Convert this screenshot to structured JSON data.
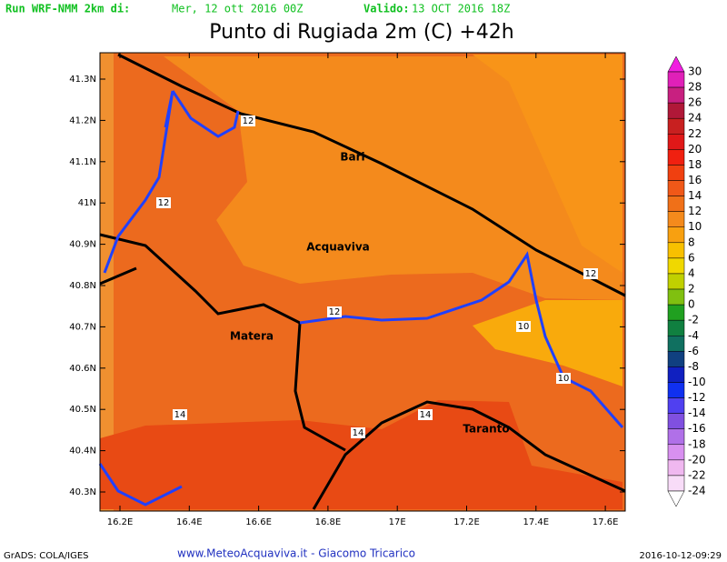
{
  "header": {
    "run_label": "Run WRF-NMM 2km di:",
    "run_date": "Mer, 12 ott 2016 00Z",
    "valid_label": "Valido:",
    "valid_date": "13 OCT 2016 18Z",
    "title": "Punto di Rugiada 2m (C) +42h"
  },
  "map": {
    "lat_labels": [
      "41.3N",
      "41.2N",
      "41.1N",
      "41N",
      "40.9N",
      "40.8N",
      "40.7N",
      "40.6N",
      "40.5N",
      "40.4N",
      "40.3N"
    ],
    "lon_labels": [
      "16.2E",
      "16.4E",
      "16.6E",
      "16.8E",
      "17E",
      "17.2E",
      "17.4E",
      "17.6E"
    ],
    "cities": [
      "Bari",
      "Acquaviva",
      "Matera",
      "Taranto"
    ],
    "contour_labels": [
      "12",
      "12",
      "12",
      "12",
      "10",
      "10",
      "14",
      "14",
      "14"
    ]
  },
  "colorbar": {
    "labels": [
      "30",
      "28",
      "26",
      "24",
      "22",
      "20",
      "18",
      "16",
      "14",
      "12",
      "10",
      "8",
      "6",
      "4",
      "2",
      "0",
      "-2",
      "-4",
      "-6",
      "-8",
      "-10",
      "-12",
      "-14",
      "-16",
      "-18",
      "-20",
      "-22",
      "-24"
    ],
    "colors": [
      "#f01ee0",
      "#e020b8",
      "#c82080",
      "#b01838",
      "#c82020",
      "#e01818",
      "#f02010",
      "#f04010",
      "#f05818",
      "#f07018",
      "#f48a1c",
      "#f8a010",
      "#f8c000",
      "#f0d800",
      "#c0d000",
      "#80c010",
      "#20a020",
      "#108040",
      "#107060",
      "#104080",
      "#1020c0",
      "#1030f0",
      "#5040f0",
      "#8050e0",
      "#b070e8",
      "#d890f0",
      "#f0b8f0",
      "#f8dcf8",
      "#ffffff"
    ]
  },
  "footer": {
    "software": "GrADS: COLA/IGES",
    "site": "www.MeteoAcquaviva.it - Giacomo Tricarico",
    "timestamp": "2016-10-12-09:29"
  }
}
